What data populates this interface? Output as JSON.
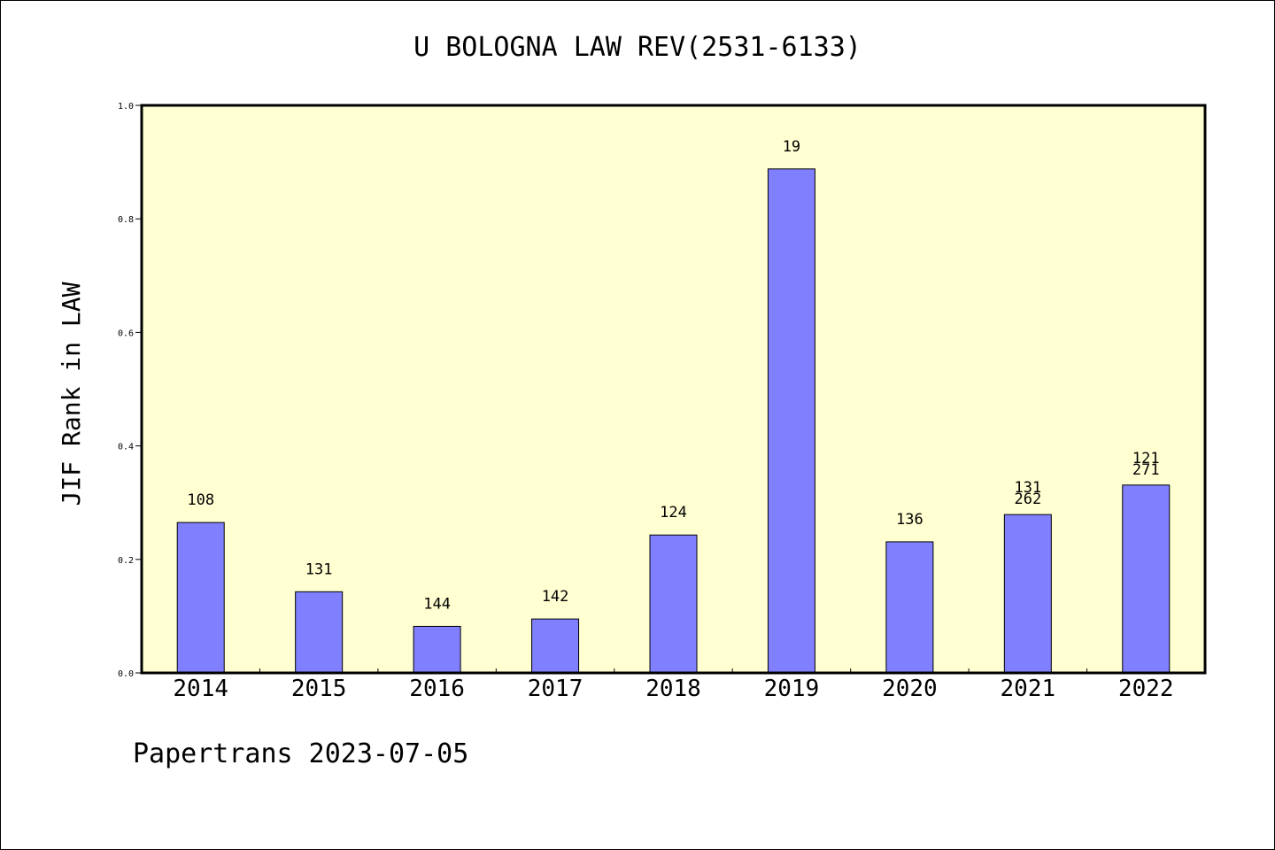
{
  "chart_data": {
    "type": "bar",
    "title": "U BOLOGNA LAW REV(2531-6133)",
    "ylabel": "JIF Rank in LAW",
    "ylim": [
      0,
      1.0
    ],
    "yticks": [
      "0.0",
      "0.2",
      "0.4",
      "0.6",
      "0.8",
      "1.0"
    ],
    "categories": [
      "2014",
      "2015",
      "2016",
      "2017",
      "2018",
      "2019",
      "2020",
      "2021",
      "2022"
    ],
    "values": [
      0.265,
      0.143,
      0.082,
      0.095,
      0.243,
      0.888,
      0.231,
      0.279,
      0.331
    ],
    "labels": [
      [
        "108"
      ],
      [
        "131"
      ],
      [
        "144"
      ],
      [
        "142"
      ],
      [
        "124"
      ],
      [
        "19"
      ],
      [
        "136"
      ],
      [
        "131",
        "262"
      ],
      [
        "121",
        "271"
      ]
    ],
    "colors": {
      "bar": "#8080ff",
      "plot_bg": "#ffffd2"
    }
  },
  "footer": {
    "text": "Papertrans 2023-07-05"
  }
}
